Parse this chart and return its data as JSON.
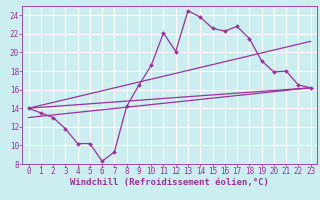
{
  "xlabel": "Windchill (Refroidissement éolien,°C)",
  "bg_color": "#cceef0",
  "line_color": "#993399",
  "grid_color": "#ffffff",
  "xlim": [
    -0.5,
    23.5
  ],
  "ylim": [
    8,
    25
  ],
  "xticks": [
    0,
    1,
    2,
    3,
    4,
    5,
    6,
    7,
    8,
    9,
    10,
    11,
    12,
    13,
    14,
    15,
    16,
    17,
    18,
    19,
    20,
    21,
    22,
    23
  ],
  "yticks": [
    8,
    10,
    12,
    14,
    16,
    18,
    20,
    22,
    24
  ],
  "curve1_x": [
    0,
    1,
    2,
    3,
    4,
    5,
    6,
    7,
    8,
    9,
    10,
    11,
    12,
    13,
    14,
    15,
    16,
    17,
    18,
    19,
    20,
    21,
    22,
    23
  ],
  "curve1_y": [
    14.0,
    13.5,
    13.0,
    11.8,
    10.2,
    10.2,
    8.3,
    9.3,
    14.2,
    16.5,
    18.6,
    22.1,
    20.1,
    24.5,
    23.8,
    22.6,
    22.3,
    22.8,
    21.5,
    19.1,
    17.9,
    18.0,
    16.5,
    16.2
  ],
  "line2_x": [
    0,
    23
  ],
  "line2_y": [
    14.0,
    21.2
  ],
  "line3_x": [
    0,
    23
  ],
  "line3_y": [
    13.0,
    16.2
  ],
  "line4_x": [
    0,
    23
  ],
  "line4_y": [
    14.0,
    16.2
  ],
  "font_size_xlabel": 6.5,
  "font_size_ticks": 5.5,
  "marker": "D",
  "marker_size": 2.0,
  "linewidth": 0.9
}
